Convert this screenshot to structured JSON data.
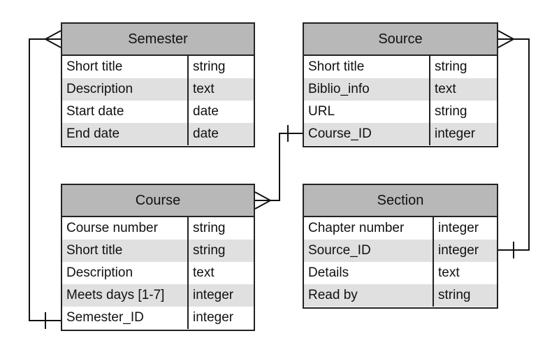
{
  "entities": {
    "semester": {
      "title": "Semester",
      "rows": [
        {
          "name": "Short title",
          "type": "string"
        },
        {
          "name": "Description",
          "type": "text"
        },
        {
          "name": "Start date",
          "type": "date"
        },
        {
          "name": "End date",
          "type": "date"
        }
      ]
    },
    "source": {
      "title": "Source",
      "rows": [
        {
          "name": "Short title",
          "type": "string"
        },
        {
          "name": "Biblio_info",
          "type": "text"
        },
        {
          "name": "URL",
          "type": "string"
        },
        {
          "name": "Course_ID",
          "type": "integer"
        }
      ]
    },
    "course": {
      "title": "Course",
      "rows": [
        {
          "name": "Course number",
          "type": "string"
        },
        {
          "name": "Short title",
          "type": "string"
        },
        {
          "name": "Description",
          "type": "text"
        },
        {
          "name": "Meets days [1-7]",
          "type": "integer"
        },
        {
          "name": "Semester_ID",
          "type": "integer"
        }
      ]
    },
    "section": {
      "title": "Section",
      "rows": [
        {
          "name": "Chapter number",
          "type": "integer"
        },
        {
          "name": "Source_ID",
          "type": "integer"
        },
        {
          "name": "Details",
          "type": "text"
        },
        {
          "name": "Read by",
          "type": "string"
        }
      ]
    }
  },
  "colors": {
    "header": "#b8b8b8",
    "row_alt": "#e0e0e0",
    "border": "#222222"
  }
}
